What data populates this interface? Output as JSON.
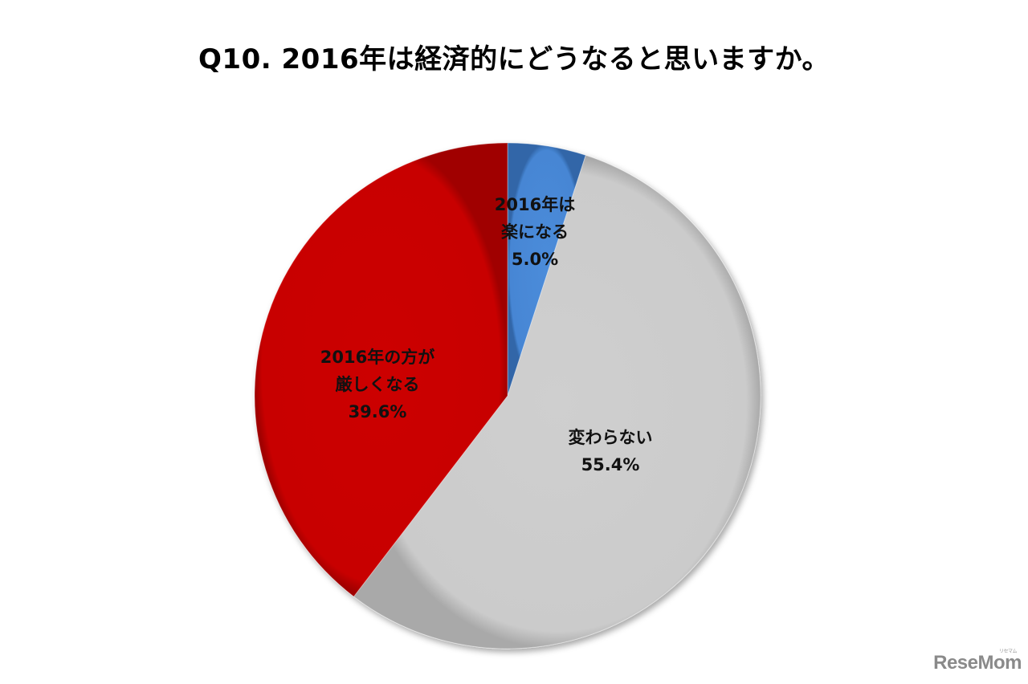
{
  "title": "Q10. 2016年は経済的にどうなると思いますか。",
  "chart_data": {
    "type": "pie",
    "title": "Q10. 2016年は経済的にどうなると思いますか。",
    "start_angle": "12 o'clock",
    "direction": "clockwise",
    "legend": "none (data labels inside slices)",
    "slices": [
      {
        "label": "2016年は楽になる",
        "label_lines": [
          "2016年は",
          "楽になる"
        ],
        "value": 5.0,
        "value_text": "5.0%",
        "color": "#4a8ad8"
      },
      {
        "label": "変わらない",
        "label_lines": [
          "変わらない"
        ],
        "value": 55.4,
        "value_text": "55.4%",
        "color": "#cbcbcb"
      },
      {
        "label": "2016年の方が厳しくなる",
        "label_lines": [
          "2016年の方が",
          "厳しくなる"
        ],
        "value": 39.6,
        "value_text": "39.6%",
        "color": "#cc0000"
      }
    ],
    "categories": [
      "2016年は楽になる",
      "変わらない",
      "2016年の方が厳しくなる"
    ],
    "values": [
      5.0,
      55.4,
      39.6
    ]
  },
  "labels": {
    "easier": {
      "line1": "2016年は",
      "line2": "楽になる",
      "pct": "5.0%"
    },
    "same": {
      "line1": "変わらない",
      "pct": "55.4%"
    },
    "harder": {
      "line1": "2016年の方が",
      "line2": "厳しくなる",
      "pct": "39.6%"
    }
  },
  "watermark": {
    "text": "ReseMom",
    "kana": "リセマム"
  }
}
